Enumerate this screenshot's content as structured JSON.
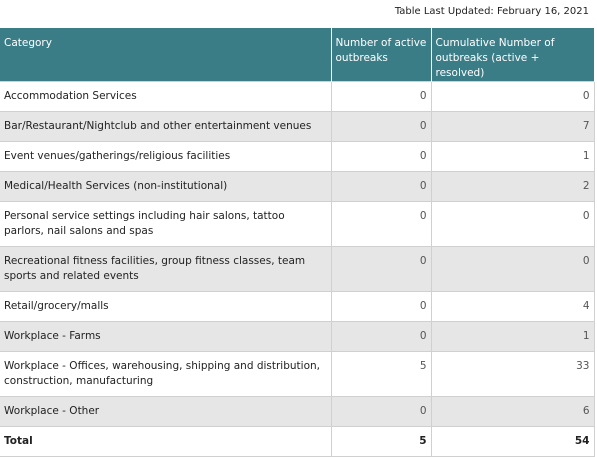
{
  "header": {
    "updated": "Table Last Updated: February 16, 2021"
  },
  "table": {
    "columns": [
      "Category",
      "Number of active outbreaks",
      "Cumulative Number of outbreaks (active + resolved)"
    ],
    "rows": [
      [
        "Accommodation Services",
        0,
        0
      ],
      [
        "Bar/Restaurant/Nightclub and other entertainment venues",
        0,
        7
      ],
      [
        "Event venues/gatherings/religious facilities",
        0,
        1
      ],
      [
        "Medical/Health Services (non-institutional)",
        0,
        2
      ],
      [
        "Personal service settings including hair salons, tattoo parlors, nail salons and spas",
        0,
        0
      ],
      [
        "Recreational fitness facilities, group fitness classes, team sports and related events",
        0,
        0
      ],
      [
        "Retail/grocery/malls",
        0,
        4
      ],
      [
        "Workplace - Farms",
        0,
        1
      ],
      [
        "Workplace - Offices, warehousing, shipping and distribution, construction, manufacturing",
        5,
        33
      ],
      [
        "Workplace - Other",
        0,
        6
      ]
    ],
    "total": [
      "Total",
      5,
      54
    ]
  }
}
